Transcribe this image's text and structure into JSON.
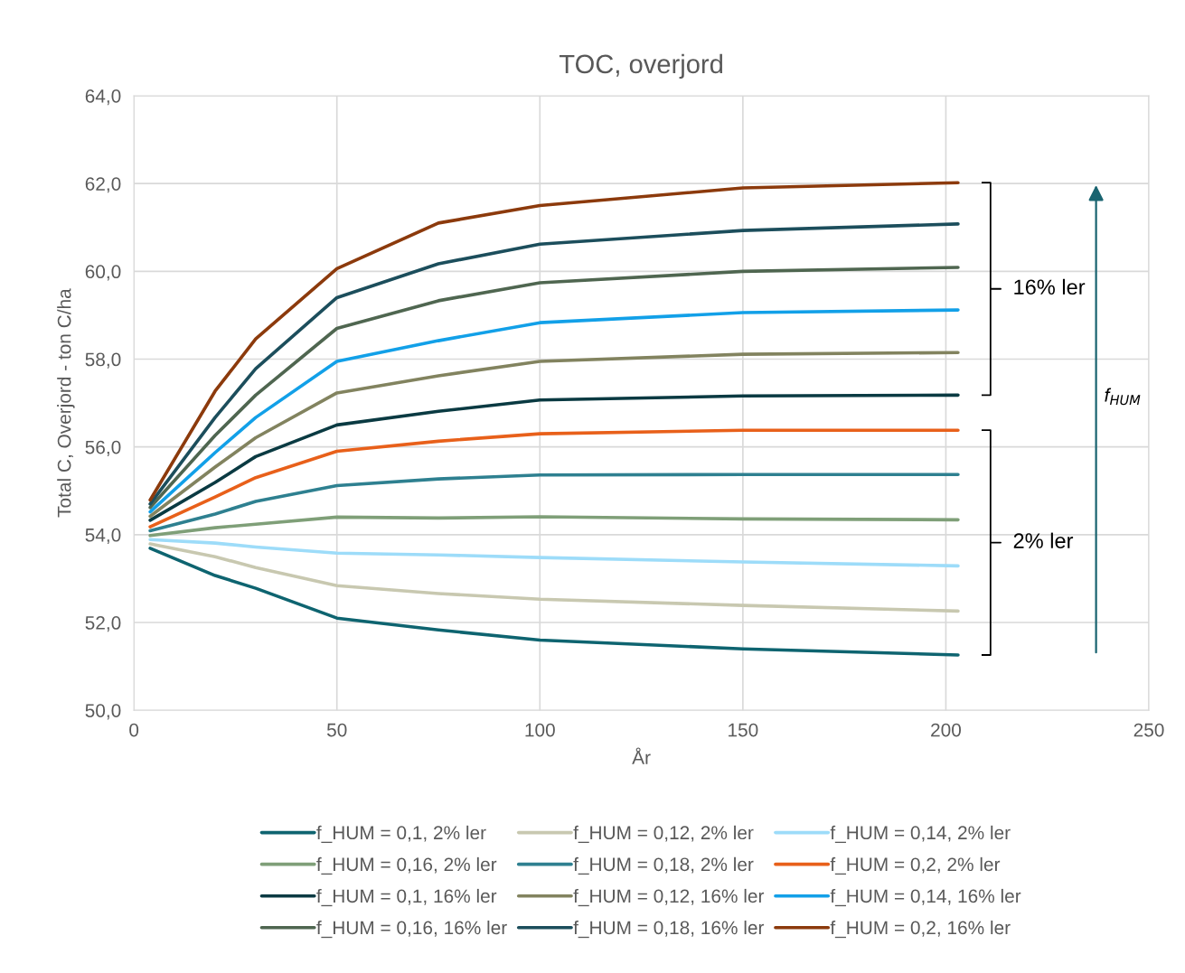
{
  "chart_data": {
    "type": "line",
    "title": "TOC, overjord",
    "xlabel": "År",
    "ylabel": "Total C, Overjord - ton C/ha",
    "x": [
      4,
      20,
      30,
      50,
      75,
      100,
      150,
      203
    ],
    "series": [
      {
        "name": "f_HUM = 0,1, 2% ler",
        "color": "#0e6470",
        "values": [
          53.69,
          53.07,
          52.78,
          52.1,
          51.83,
          51.6,
          51.4,
          51.26
        ]
      },
      {
        "name": "f_HUM = 0,12, 2% ler",
        "color": "#c8c8b0",
        "values": [
          53.79,
          53.5,
          53.25,
          52.84,
          52.66,
          52.53,
          52.39,
          52.26
        ]
      },
      {
        "name": "f_HUM = 0,14, 2% ler",
        "color": "#9ddcf9",
        "values": [
          53.89,
          53.81,
          53.72,
          53.58,
          53.54,
          53.48,
          53.38,
          53.29
        ]
      },
      {
        "name": "f_HUM = 0,16, 2% ler",
        "color": "#7f9f78",
        "values": [
          53.98,
          54.16,
          54.24,
          54.4,
          54.38,
          54.41,
          54.36,
          54.34
        ]
      },
      {
        "name": "f_HUM = 0,18, 2% ler",
        "color": "#2e8090",
        "values": [
          54.09,
          54.47,
          54.76,
          55.12,
          55.27,
          55.36,
          55.37,
          55.37
        ]
      },
      {
        "name": "f_HUM = 0,2, 2% ler",
        "color": "#e8601a",
        "values": [
          54.18,
          54.86,
          55.3,
          55.9,
          56.13,
          56.3,
          56.38,
          56.38
        ]
      },
      {
        "name": "f_HUM = 0,1, 16% ler",
        "color": "#0a3a42",
        "values": [
          54.33,
          55.19,
          55.78,
          56.5,
          56.81,
          57.07,
          57.16,
          57.18
        ]
      },
      {
        "name": "f_HUM = 0,12, 16% ler",
        "color": "#82835f",
        "values": [
          54.42,
          55.54,
          56.21,
          57.23,
          57.62,
          57.95,
          58.11,
          58.15
        ]
      },
      {
        "name": "f_HUM = 0,14, 16% ler",
        "color": "#12a0e8",
        "values": [
          54.52,
          55.87,
          56.67,
          57.95,
          58.42,
          58.83,
          59.06,
          59.12
        ]
      },
      {
        "name": "f_HUM = 0,16, 16% ler",
        "color": "#4f6650",
        "values": [
          54.62,
          56.26,
          57.18,
          58.7,
          59.33,
          59.74,
          60.0,
          60.09
        ]
      },
      {
        "name": "f_HUM = 0,18, 16% ler",
        "color": "#1c4e5c",
        "values": [
          54.7,
          56.67,
          57.78,
          59.4,
          60.17,
          60.62,
          60.93,
          61.08
        ]
      },
      {
        "name": "f_HUM = 0,2, 16% ler",
        "color": "#8c3a0c",
        "values": [
          54.79,
          57.27,
          58.46,
          60.06,
          61.1,
          61.5,
          61.9,
          62.02
        ]
      }
    ],
    "xlim": [
      0,
      250
    ],
    "xticks": [
      0,
      50,
      100,
      150,
      200,
      250
    ],
    "ylim": [
      50,
      64
    ],
    "yticks": [
      {
        "value": 50,
        "label": "50,0"
      },
      {
        "value": 52,
        "label": "52,0"
      },
      {
        "value": 54,
        "label": "54,0"
      },
      {
        "value": 56,
        "label": "56,0"
      },
      {
        "value": 58,
        "label": "58,0"
      },
      {
        "value": 60,
        "label": "60,0"
      },
      {
        "value": 62,
        "label": "62,0"
      },
      {
        "value": 64,
        "label": "64,0"
      }
    ],
    "grid": true,
    "legend": "bottom",
    "marker": "none",
    "line_style": "solid",
    "annotations": [
      "16% ler",
      "2% ler",
      "f$_{HUM}$"
    ]
  }
}
